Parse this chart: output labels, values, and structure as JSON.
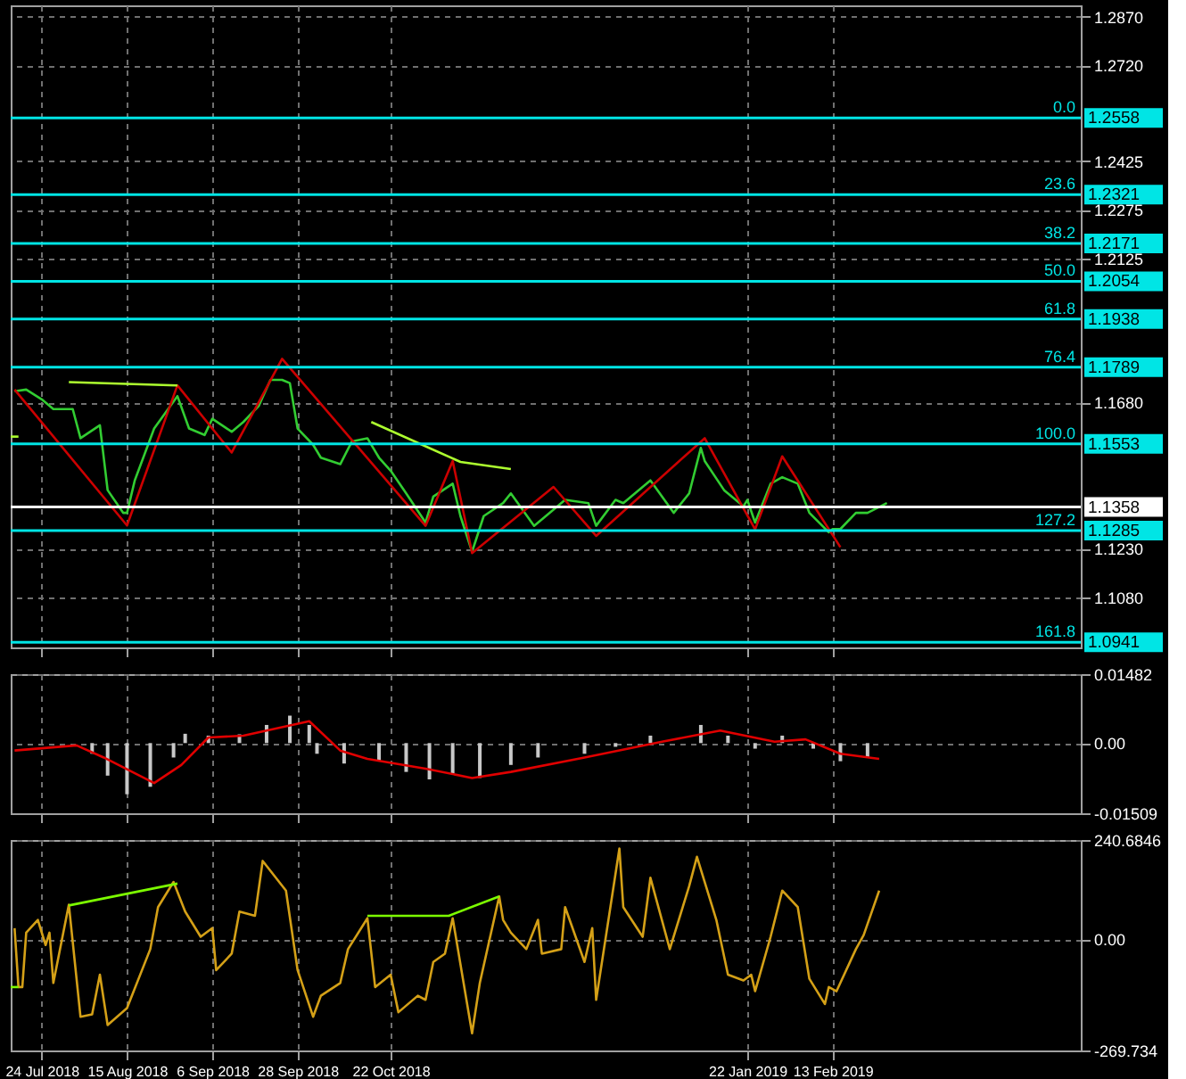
{
  "chart_data": [
    {
      "type": "line",
      "xlim": [
        "2018-07-16",
        "2019-04-18"
      ],
      "ylim": [
        1.0925,
        1.2905
      ],
      "grid": true,
      "tick_labels": "y",
      "line_style": "solid",
      "xticks": [
        {
          "value": "2018-07-24",
          "label": null
        },
        {
          "value": "2018-08-15",
          "label": null
        },
        {
          "value": "2018-09-06",
          "label": null
        },
        {
          "value": "2018-09-28",
          "label": null
        },
        {
          "value": "2018-10-22",
          "label": null
        },
        {
          "value": "2019-01-22",
          "label": null
        },
        {
          "value": "2019-02-13",
          "label": null
        }
      ],
      "yticks": [
        {
          "value": 1.287,
          "label": "1.2870"
        },
        {
          "value": 1.272,
          "label": "1.2720"
        },
        {
          "value": 1.2425,
          "label": "1.2425"
        },
        {
          "value": 1.2275,
          "label": "1.2275"
        },
        {
          "value": 1.2125,
          "label": "1.2125"
        },
        {
          "value": 1.168,
          "label": "1.1680"
        },
        {
          "value": 1.123,
          "label": "1.1230"
        },
        {
          "value": 1.108,
          "label": "1.1080"
        }
      ],
      "series": [
        {
          "color": "#32cd32",
          "x": [
            "2018-07-17",
            "2018-07-20",
            "2018-07-24",
            "2018-07-27",
            "2018-08-01",
            "2018-08-03",
            "2018-08-08",
            "2018-08-10",
            "2018-08-14",
            "2018-08-15",
            "2018-08-17",
            "2018-08-22",
            "2018-08-28",
            "2018-08-31",
            "2018-09-04",
            "2018-09-06",
            "2018-09-11",
            "2018-09-14",
            "2018-09-18",
            "2018-09-21",
            "2018-09-24",
            "2018-09-26",
            "2018-09-28",
            "2018-10-02",
            "2018-10-04",
            "2018-10-09",
            "2018-10-12",
            "2018-10-16",
            "2018-10-19",
            "2018-10-22",
            "2018-10-26",
            "2018-10-31",
            "2018-11-02",
            "2018-11-07",
            "2018-11-09",
            "2018-11-12",
            "2018-11-15",
            "2018-11-20",
            "2018-11-22",
            "2018-11-28",
            "2018-12-03",
            "2018-12-06",
            "2018-12-12",
            "2018-12-14",
            "2018-12-19",
            "2018-12-21",
            "2018-12-28",
            "2019-01-03",
            "2019-01-07",
            "2019-01-10",
            "2019-01-11",
            "2019-01-16",
            "2019-01-21",
            "2019-01-22",
            "2019-01-24",
            "2019-01-28",
            "2019-01-31",
            "2019-02-04",
            "2019-02-07",
            "2019-02-12",
            "2019-02-13",
            "2019-02-15",
            "2019-02-19",
            "2019-02-22",
            "2019-02-27"
          ],
          "values": [
            1.1715,
            1.172,
            1.169,
            1.166,
            1.166,
            1.157,
            1.161,
            1.141,
            1.134,
            1.134,
            1.144,
            1.16,
            1.17,
            1.16,
            1.158,
            1.163,
            1.159,
            1.162,
            1.167,
            1.175,
            1.175,
            1.174,
            1.16,
            1.155,
            1.151,
            1.149,
            1.156,
            1.157,
            1.151,
            1.147,
            1.14,
            1.131,
            1.139,
            1.143,
            1.133,
            1.122,
            1.133,
            1.137,
            1.14,
            1.13,
            1.135,
            1.138,
            1.137,
            1.13,
            1.138,
            1.137,
            1.144,
            1.134,
            1.14,
            1.154,
            1.15,
            1.141,
            1.136,
            1.138,
            1.131,
            1.143,
            1.145,
            1.143,
            1.134,
            1.128,
            1.129,
            1.129,
            1.134,
            1.134,
            1.137
          ]
        },
        {
          "color": "#cc0000",
          "x": [
            "2018-07-17",
            "2018-08-15",
            "2018-08-28",
            "2018-09-11",
            "2018-09-24",
            "2018-10-31",
            "2018-11-07",
            "2018-11-12",
            "2018-12-03",
            "2018-12-14",
            "2019-01-11",
            "2019-01-24",
            "2019-01-31",
            "2019-02-15"
          ],
          "values": [
            1.172,
            1.1301,
            1.1733,
            1.1526,
            1.1815,
            1.13,
            1.15,
            1.1216,
            1.142,
            1.1269,
            1.157,
            1.1289,
            1.1514,
            1.1234
          ]
        },
        {
          "color": "#adff2f",
          "x": [
            "2018-07-31",
            "2018-08-28"
          ],
          "values": [
            1.1743,
            1.1733
          ]
        },
        {
          "color": "#adff2f",
          "x": [
            "2018-10-17",
            "2018-11-09",
            "2018-11-22"
          ],
          "values": [
            1.162,
            1.1497,
            1.1475
          ]
        },
        {
          "color": "#adff2f",
          "x": [
            "2018-07-16",
            "2018-07-18"
          ],
          "values": [
            1.1575,
            1.1575
          ]
        }
      ],
      "ref_lines": [
        {
          "axis": "y",
          "value": 1.2558,
          "label": "1.2558",
          "color": "#00e5e5"
        },
        {
          "axis": "y",
          "value": 1.2321,
          "label": "1.2321",
          "color": "#00e5e5"
        },
        {
          "axis": "y",
          "value": 1.2171,
          "label": "1.2171",
          "color": "#00e5e5"
        },
        {
          "axis": "y",
          "value": 1.2054,
          "label": "1.2054",
          "color": "#00e5e5"
        },
        {
          "axis": "y",
          "value": 1.1938,
          "label": "1.1938",
          "color": "#00e5e5"
        },
        {
          "axis": "y",
          "value": 1.1789,
          "label": "1.1789",
          "color": "#00e5e5"
        },
        {
          "axis": "y",
          "value": 1.1553,
          "label": "1.1553",
          "color": "#00e5e5"
        },
        {
          "axis": "y",
          "value": 1.1285,
          "label": "1.1285",
          "color": "#00e5e5"
        },
        {
          "axis": "y",
          "value": 1.0941,
          "label": "1.0941",
          "color": "#00e5e5"
        },
        {
          "axis": "y",
          "value": 1.1358,
          "label": "1.1358",
          "color": "#ffffff"
        }
      ],
      "annotations": [
        "0.0",
        "23.6",
        "38.2",
        "50.0",
        "61.8",
        "76.4",
        "100.0",
        "127.2",
        "161.8"
      ]
    },
    {
      "type": "bar",
      "xlim": [
        "2018-07-16",
        "2019-04-18"
      ],
      "ylim": [
        -0.01509,
        0.01482
      ],
      "grid": true,
      "tick_labels": "y",
      "xticks": [
        {
          "value": "2018-07-24",
          "label": null
        },
        {
          "value": "2018-08-15",
          "label": null
        },
        {
          "value": "2018-09-06",
          "label": null
        },
        {
          "value": "2018-09-28",
          "label": null
        },
        {
          "value": "2018-10-22",
          "label": null
        },
        {
          "value": "2019-01-22",
          "label": null
        },
        {
          "value": "2019-02-13",
          "label": null
        }
      ],
      "yticks": [
        {
          "value": 0.01482,
          "label": "0.01482"
        },
        {
          "value": 0,
          "label": "0.00"
        },
        {
          "value": -0.01509,
          "label": "-0.01509"
        }
      ],
      "series": [
        {
          "type": "bar",
          "color": "#c8c8c8",
          "x": [
            "2018-08-06",
            "2018-08-10",
            "2018-08-15",
            "2018-08-21",
            "2018-08-27",
            "2018-08-30",
            "2018-09-05",
            "2018-09-13",
            "2018-09-20",
            "2018-09-26",
            "2018-10-01",
            "2018-10-03",
            "2018-10-10",
            "2018-10-19",
            "2018-10-26",
            "2018-11-01",
            "2018-11-07",
            "2018-11-14",
            "2018-11-22",
            "2018-11-29",
            "2018-12-11",
            "2018-12-19",
            "2018-12-28",
            "2019-01-10",
            "2019-01-17",
            "2019-01-24",
            "2019-01-31",
            "2019-02-08",
            "2019-02-15",
            "2019-02-22"
          ],
          "values": [
            -0.0023,
            -0.007,
            -0.011,
            -0.0094,
            -0.0031,
            0.002,
            0.0016,
            0.0019,
            0.0039,
            0.0059,
            0.0039,
            -0.0023,
            -0.0044,
            -0.0039,
            -0.0062,
            -0.0078,
            -0.0065,
            -0.0075,
            -0.0047,
            -0.0031,
            -0.0023,
            -0.0008,
            0.0016,
            0.0039,
            0.0016,
            -0.0012,
            0.0016,
            -0.0012,
            -0.0039,
            -0.0031
          ]
        },
        {
          "type": "line",
          "color": "#e00000",
          "x": [
            "2018-07-17",
            "2018-08-02",
            "2018-08-09",
            "2018-08-22",
            "2018-08-29",
            "2018-09-05",
            "2018-09-14",
            "2018-10-01",
            "2018-10-09",
            "2018-10-16",
            "2018-10-31",
            "2018-11-12",
            "2018-11-22",
            "2018-12-11",
            "2018-12-31",
            "2019-01-15",
            "2019-01-29",
            "2019-02-06",
            "2019-02-15",
            "2019-02-25"
          ],
          "values": [
            -0.0016,
            -0.0005,
            -0.0031,
            -0.0086,
            -0.0047,
            0.0012,
            0.0016,
            0.0047,
            -0.0016,
            -0.0034,
            -0.0055,
            -0.0075,
            -0.0062,
            -0.0031,
            0.0003,
            0.0027,
            0.0003,
            0.0008,
            -0.0023,
            -0.0034
          ]
        }
      ]
    },
    {
      "type": "line",
      "xlim": [
        "2018-07-16",
        "2019-04-18"
      ],
      "ylim": [
        -269.734,
        240.6846
      ],
      "grid": true,
      "xticks": [
        {
          "value": "2018-07-24",
          "label": "24 Jul 2018"
        },
        {
          "value": "2018-08-15",
          "label": "15 Aug 2018"
        },
        {
          "value": "2018-09-06",
          "label": "6 Sep 2018"
        },
        {
          "value": "2018-09-28",
          "label": "28 Sep 2018"
        },
        {
          "value": "2018-10-22",
          "label": "22 Oct 2018"
        },
        {
          "value": "2019-01-22",
          "label": "22 Jan 2019"
        },
        {
          "value": "2019-02-13",
          "label": "13 Feb 2019"
        }
      ],
      "yticks": [
        {
          "value": 240.6846,
          "label": "240.6846"
        },
        {
          "value": 0,
          "label": "0.00"
        },
        {
          "value": -269.734,
          "label": "-269.734"
        }
      ],
      "series": [
        {
          "color": "#d4a017",
          "x": [
            "2018-07-17",
            "2018-07-18",
            "2018-07-19",
            "2018-07-20",
            "2018-07-23",
            "2018-07-25",
            "2018-07-26",
            "2018-07-27",
            "2018-07-31",
            "2018-08-03",
            "2018-08-06",
            "2018-08-08",
            "2018-08-10",
            "2018-08-15",
            "2018-08-21",
            "2018-08-23",
            "2018-08-27",
            "2018-08-30",
            "2018-09-03",
            "2018-09-06",
            "2018-09-07",
            "2018-09-11",
            "2018-09-13",
            "2018-09-17",
            "2018-09-19",
            "2018-09-25",
            "2018-09-28",
            "2018-10-02",
            "2018-10-04",
            "2018-10-09",
            "2018-10-11",
            "2018-10-16",
            "2018-10-18",
            "2018-10-22",
            "2018-10-24",
            "2018-10-29",
            "2018-10-31",
            "2018-11-02",
            "2018-11-05",
            "2018-11-07",
            "2018-11-12",
            "2018-11-14",
            "2018-11-19",
            "2018-11-20",
            "2018-11-22",
            "2018-11-26",
            "2018-11-29",
            "2018-11-30",
            "2018-12-05",
            "2018-12-06",
            "2018-12-11",
            "2018-12-13",
            "2018-12-14",
            "2018-12-20",
            "2018-12-21",
            "2018-12-26",
            "2018-12-28",
            "2019-01-02",
            "2019-01-07",
            "2019-01-09",
            "2019-01-14",
            "2019-01-17",
            "2019-01-21",
            "2019-01-23",
            "2019-01-24",
            "2019-01-28",
            "2019-01-31",
            "2019-02-04",
            "2019-02-07",
            "2019-02-11",
            "2019-02-12",
            "2019-02-14",
            "2019-02-19",
            "2019-02-21",
            "2019-02-25"
          ],
          "values": [
            27,
            -116,
            -116,
            16,
            47,
            -14,
            16,
            -106,
            84,
            -188,
            -182,
            -86,
            -208,
            -167,
            -24,
            78,
            139,
            67,
            6,
            27,
            -75,
            -35,
            67,
            57,
            190,
            118,
            -75,
            -188,
            -137,
            -106,
            -24,
            51,
            -116,
            -86,
            -177,
            -137,
            -147,
            -55,
            -35,
            51,
            -228,
            -106,
            104,
            47,
            16,
            -24,
            47,
            -35,
            -24,
            78,
            -55,
            27,
            -147,
            220,
            78,
            6,
            149,
            -24,
            129,
            200,
            47,
            -86,
            -100,
            -86,
            -126,
            6,
            118,
            78,
            -96,
            -157,
            -116,
            -126,
            -24,
            10,
            118
          ]
        },
        {
          "color": "#7cfc00",
          "x": [
            "2018-07-31",
            "2018-08-28"
          ],
          "values": [
            82,
            135
          ]
        },
        {
          "color": "#7cfc00",
          "x": [
            "2018-10-16",
            "2018-11-06",
            "2018-11-19"
          ],
          "values": [
            57,
            57,
            104
          ]
        },
        {
          "color": "#7cfc00",
          "x": [
            "2018-07-16",
            "2018-07-18"
          ],
          "values": [
            -116,
            -116
          ]
        }
      ]
    }
  ]
}
